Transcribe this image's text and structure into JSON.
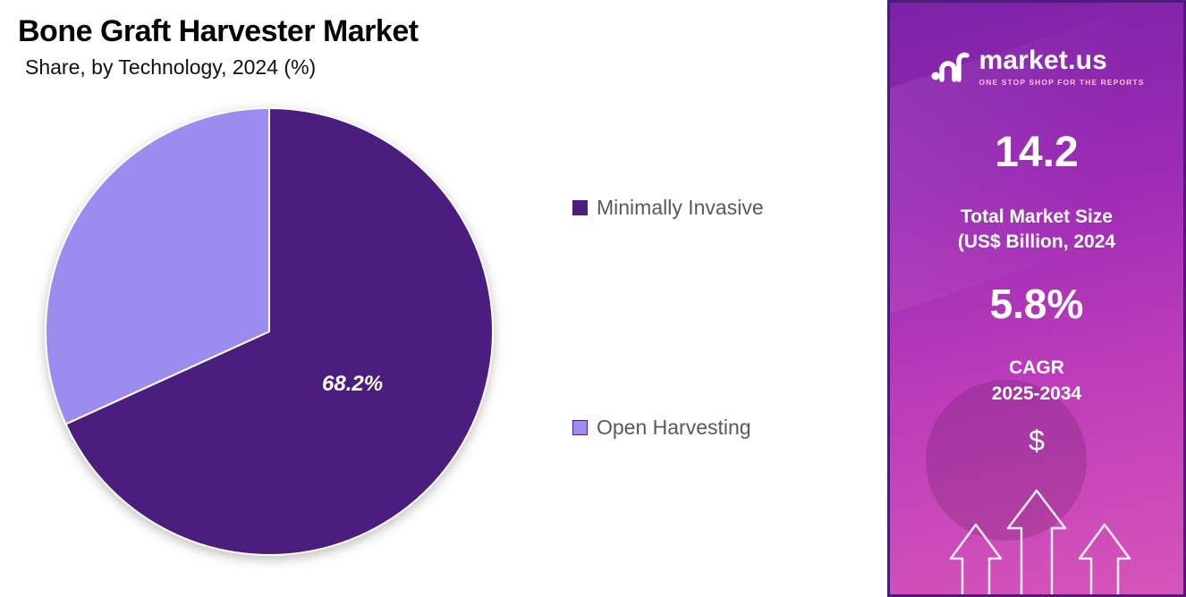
{
  "page": {
    "title": "Bone Graft Harvester Market",
    "subtitle": "Share, by Technology, 2024 (%)"
  },
  "chart_data": {
    "type": "pie",
    "title": "Bone Graft Harvester Market",
    "subtitle": "Share, by Technology, 2024 (%)",
    "slices": [
      {
        "label": "Minimally Invasive",
        "value": 68.2,
        "color": "#4a1d7e"
      },
      {
        "label": "Open Harvesting",
        "value": 31.8,
        "color": "#9d8cf0"
      }
    ],
    "data_label": "68.2%",
    "legend_position": "right",
    "start_angle_deg": 0,
    "direction": "clockwise"
  },
  "sidebar": {
    "brand": "market.us",
    "tagline": "ONE STOP SHOP FOR THE REPORTS",
    "market_size_value": "14.2",
    "market_size_label_line1": "Total Market Size",
    "market_size_label_line2": "(US$ Billion, 2024",
    "cagr_value": "5.8%",
    "cagr_label_line1": "CAGR",
    "cagr_label_line2": "2025-2034",
    "currency_symbol": "$"
  }
}
